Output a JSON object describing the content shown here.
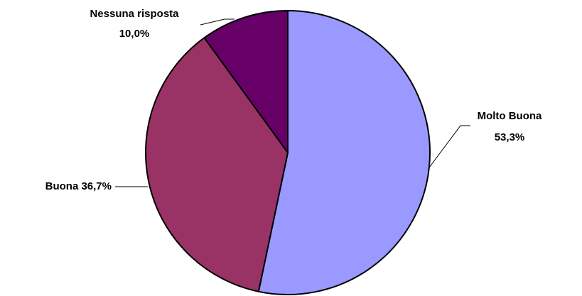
{
  "chart_data": {
    "type": "pie",
    "title": "",
    "slices": [
      {
        "label": "Molto Buona",
        "value": 53.3,
        "display_line1": "Molto Buona",
        "display_line2": "53,3%",
        "color": "#9999FF"
      },
      {
        "label": "Buona",
        "value": 36.7,
        "display_line1": "Buona 36,7%",
        "display_line2": "",
        "color": "#993366"
      },
      {
        "label": "Nessuna risposta",
        "value": 10.0,
        "display_line1": "Nessuna risposta",
        "display_line2": "10,0%",
        "color": "#660066"
      }
    ],
    "start_angle": "12 o'clock",
    "direction": "clockwise",
    "legend": "none",
    "outline_color": "#000000"
  }
}
